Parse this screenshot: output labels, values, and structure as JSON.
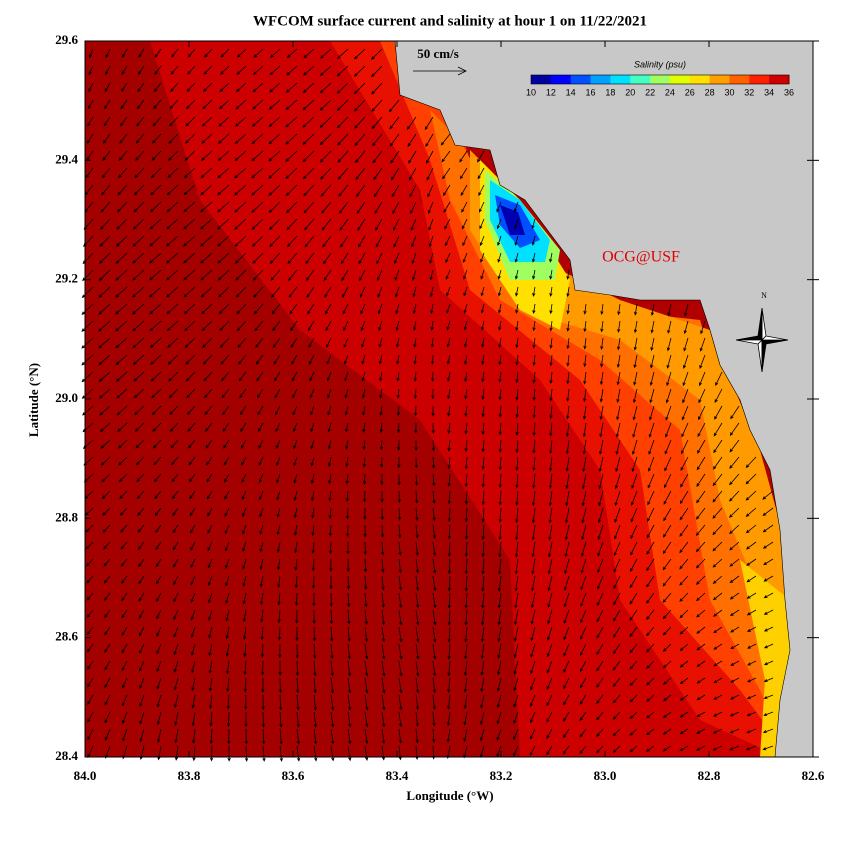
{
  "title": "WFCOM surface current and salinity at hour 1 on 11/22/2021",
  "x_axis": {
    "label": "Longitude (°W)",
    "lim": [
      84,
      82.6
    ],
    "ticks": [
      {
        "value": 84,
        "label": "84.0"
      },
      83.8,
      83.6,
      83.4,
      83.2,
      {
        "value": 83,
        "label": "83.0"
      },
      82.8,
      82.6
    ]
  },
  "y_axis": {
    "label": "Latitude (°N)",
    "lim": [
      28.4,
      29.6
    ],
    "ticks": [
      28.4,
      28.6,
      28.8,
      {
        "value": 29,
        "label": "29.0"
      },
      29.2,
      29.4,
      29.6
    ]
  },
  "colorbar": {
    "title": "Salinity (psu)",
    "lim": [
      10,
      36
    ],
    "ticks": [
      10,
      12,
      14,
      16,
      18,
      20,
      22,
      24,
      26,
      28,
      30,
      32,
      34,
      36
    ],
    "colors": [
      "#0000a0",
      "#0000ff",
      "#0050ff",
      "#00a0ff",
      "#00e0ff",
      "#40ffc0",
      "#a0ff60",
      "#e0ff00",
      "#ffe000",
      "#ffa000",
      "#ff6000",
      "#ff2000",
      "#d00000"
    ]
  },
  "scale_label": "50 cm/s",
  "annotation": "OCG@USF",
  "compass_label": "N"
}
